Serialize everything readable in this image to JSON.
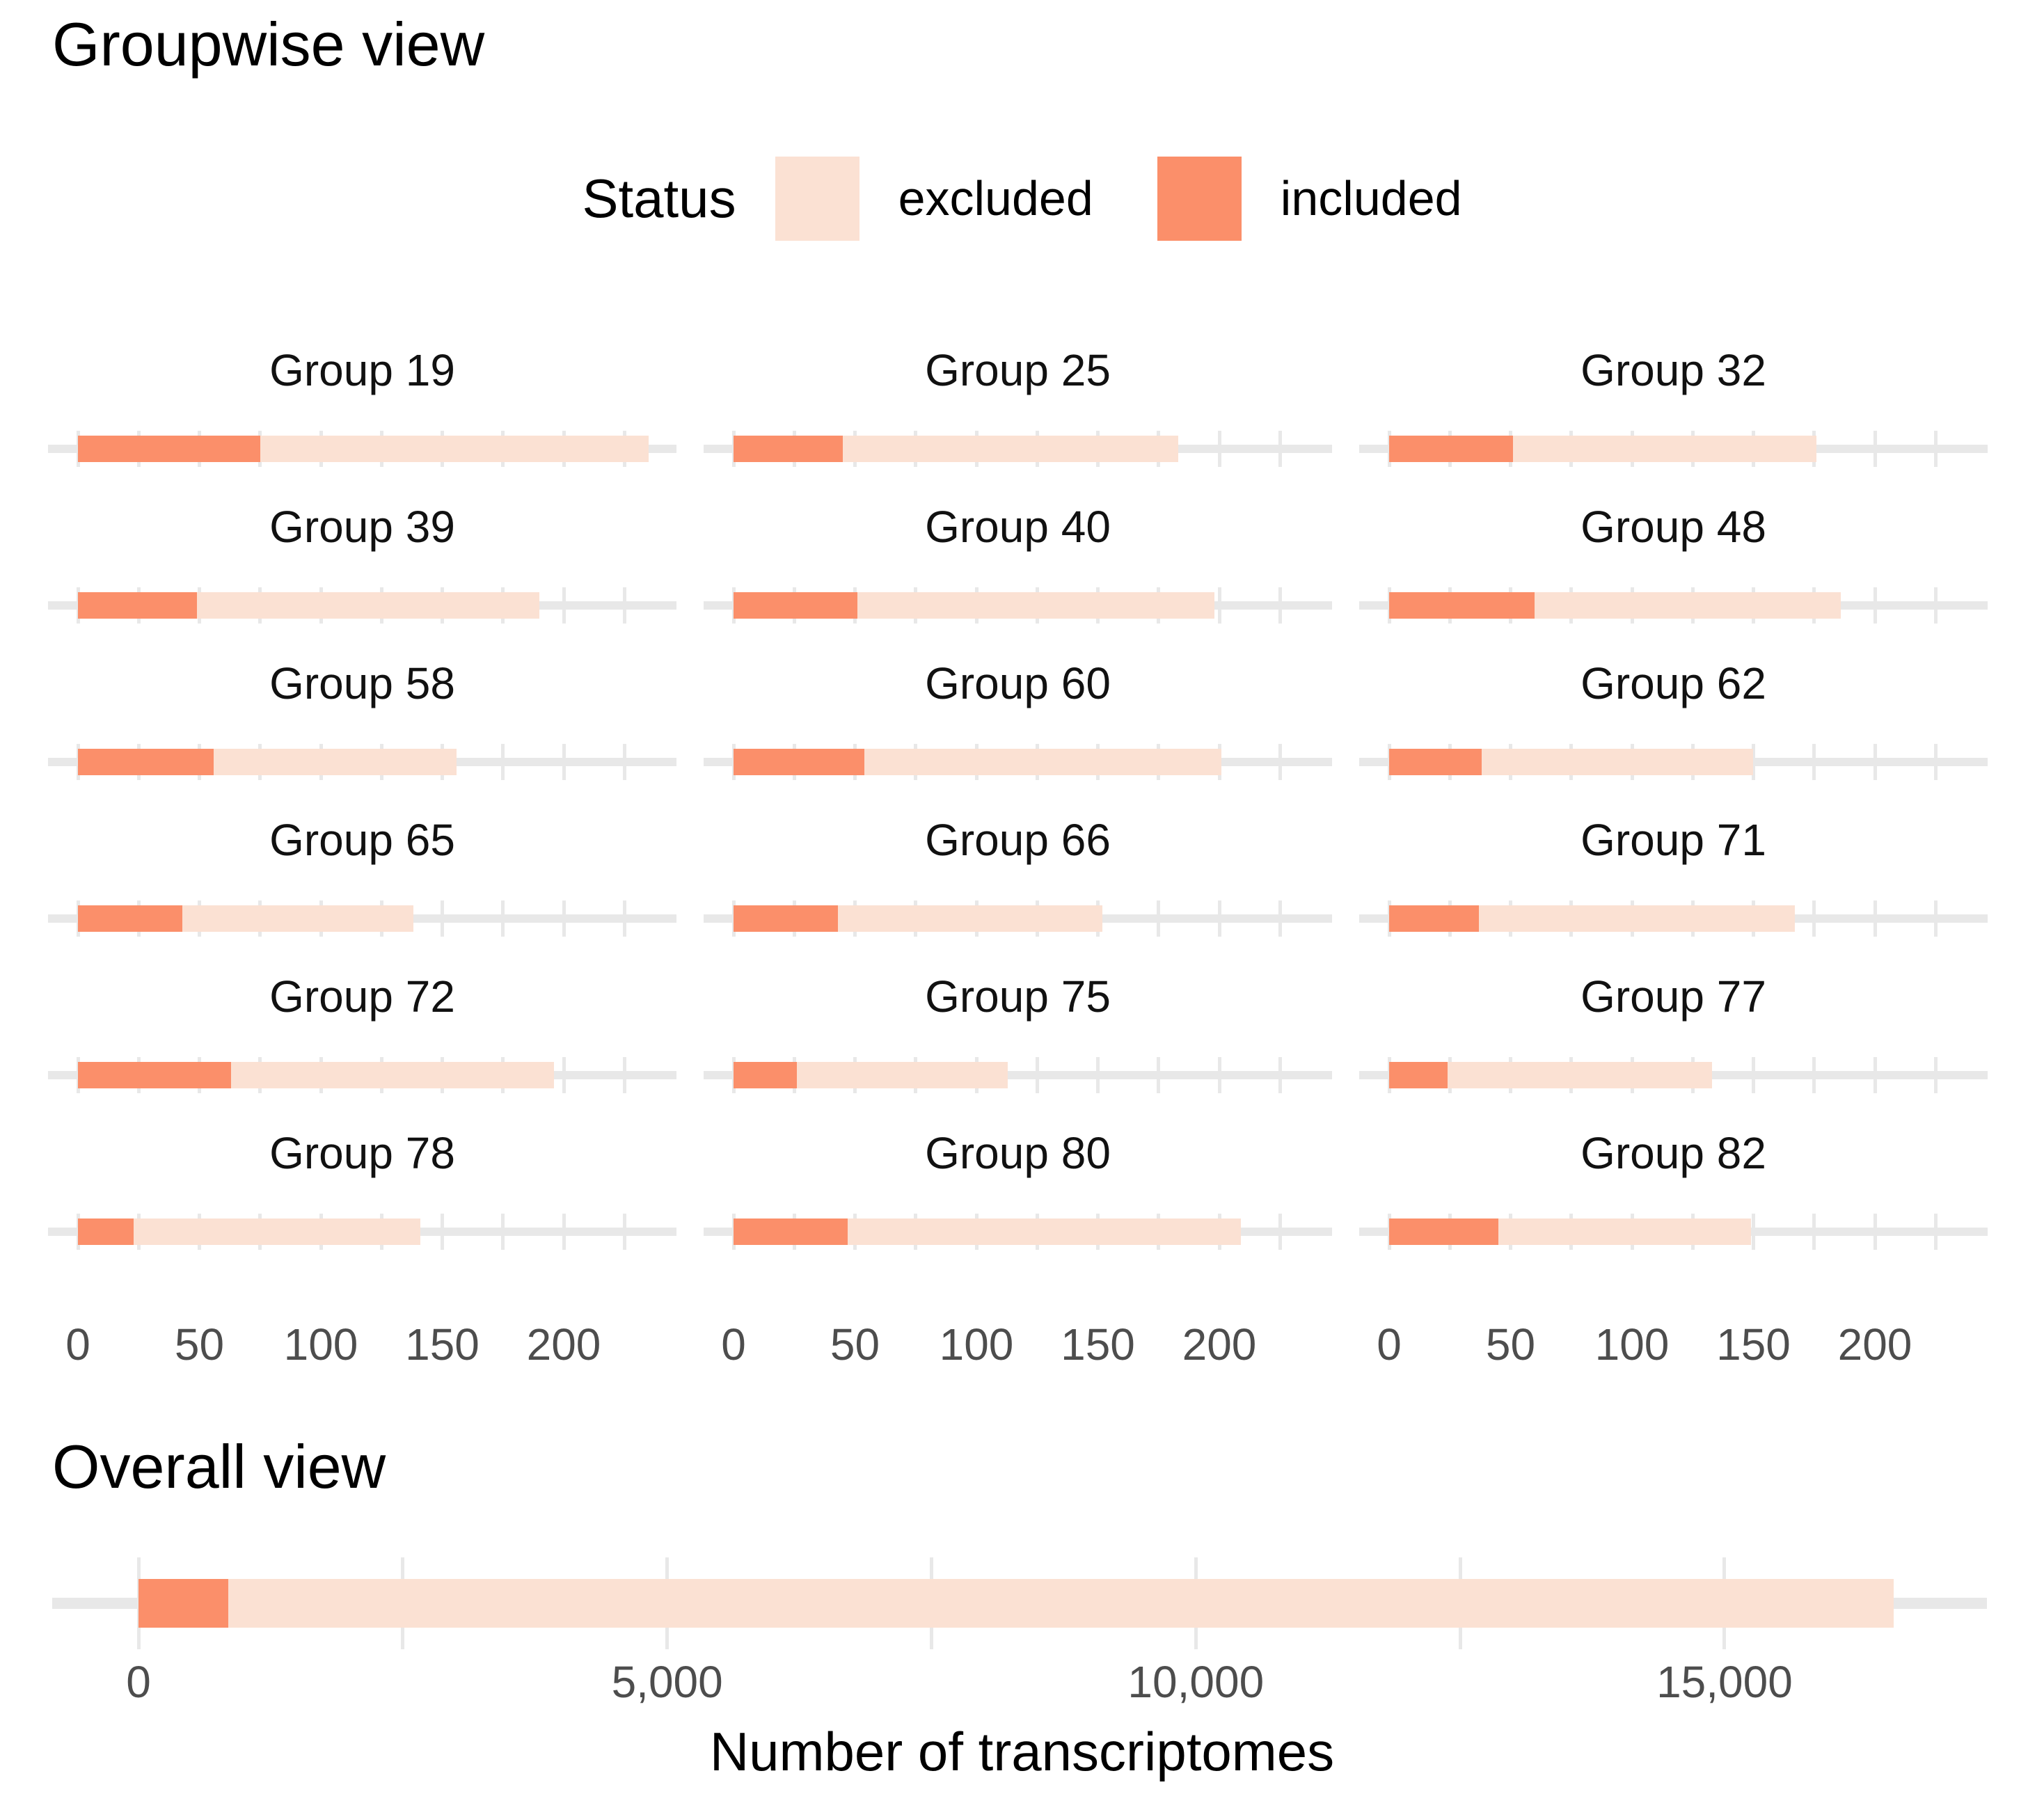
{
  "groupwise": {
    "title": "Groupwise view"
  },
  "overall": {
    "title": "Overall view",
    "xlabel": "Number of transcriptomes"
  },
  "legend": {
    "title": "Status",
    "excluded_label": "excluded",
    "included_label": "included"
  },
  "colors": {
    "included": "#FB8F6A",
    "excluded": "#FBE1D3",
    "gridline": "#E8E8E8",
    "tick_text": "#4D4D4D"
  },
  "chart_data": [
    {
      "type": "bar",
      "orientation": "horizontal",
      "stacked": true,
      "title": "Groupwise view",
      "legend": {
        "title": "Status",
        "entries": [
          "excluded",
          "included"
        ],
        "position": "top"
      },
      "series_names": [
        "included",
        "excluded"
      ],
      "facets": [
        {
          "name": "Group 19",
          "included": 75,
          "excluded": 160
        },
        {
          "name": "Group 25",
          "included": 45,
          "excluded": 138
        },
        {
          "name": "Group 32",
          "included": 51,
          "excluded": 125
        },
        {
          "name": "Group 39",
          "included": 49,
          "excluded": 141
        },
        {
          "name": "Group 40",
          "included": 51,
          "excluded": 147
        },
        {
          "name": "Group 48",
          "included": 60,
          "excluded": 126
        },
        {
          "name": "Group 58",
          "included": 56,
          "excluded": 100
        },
        {
          "name": "Group 60",
          "included": 54,
          "excluded": 147
        },
        {
          "name": "Group 62",
          "included": 38,
          "excluded": 112
        },
        {
          "name": "Group 65",
          "included": 43,
          "excluded": 95
        },
        {
          "name": "Group 66",
          "included": 43,
          "excluded": 109
        },
        {
          "name": "Group 71",
          "included": 37,
          "excluded": 130
        },
        {
          "name": "Group 72",
          "included": 63,
          "excluded": 133
        },
        {
          "name": "Group 75",
          "included": 26,
          "excluded": 87
        },
        {
          "name": "Group 77",
          "included": 24,
          "excluded": 109
        },
        {
          "name": "Group 78",
          "included": 23,
          "excluded": 118
        },
        {
          "name": "Group 80",
          "included": 47,
          "excluded": 162
        },
        {
          "name": "Group 82",
          "included": 45,
          "excluded": 104
        }
      ],
      "x_tick_labels": [
        "0",
        "50",
        "100",
        "150",
        "200"
      ],
      "x_tick_values": [
        0,
        50,
        100,
        150,
        200
      ],
      "x_minor_step": 25,
      "xlim": [
        0,
        246
      ],
      "grid": true
    },
    {
      "type": "bar",
      "orientation": "horizontal",
      "stacked": true,
      "title": "Overall view",
      "xlabel": "Number of transcriptomes",
      "series": [
        {
          "name": "included",
          "value": 850
        },
        {
          "name": "excluded",
          "value": 15750
        }
      ],
      "total": 16600,
      "x_tick_labels": [
        "0",
        "5,000",
        "10,000",
        "15,000"
      ],
      "x_tick_values": [
        0,
        5000,
        10000,
        15000
      ],
      "x_minor_step": 2500,
      "xlim": [
        0,
        17450
      ],
      "grid": true
    }
  ]
}
